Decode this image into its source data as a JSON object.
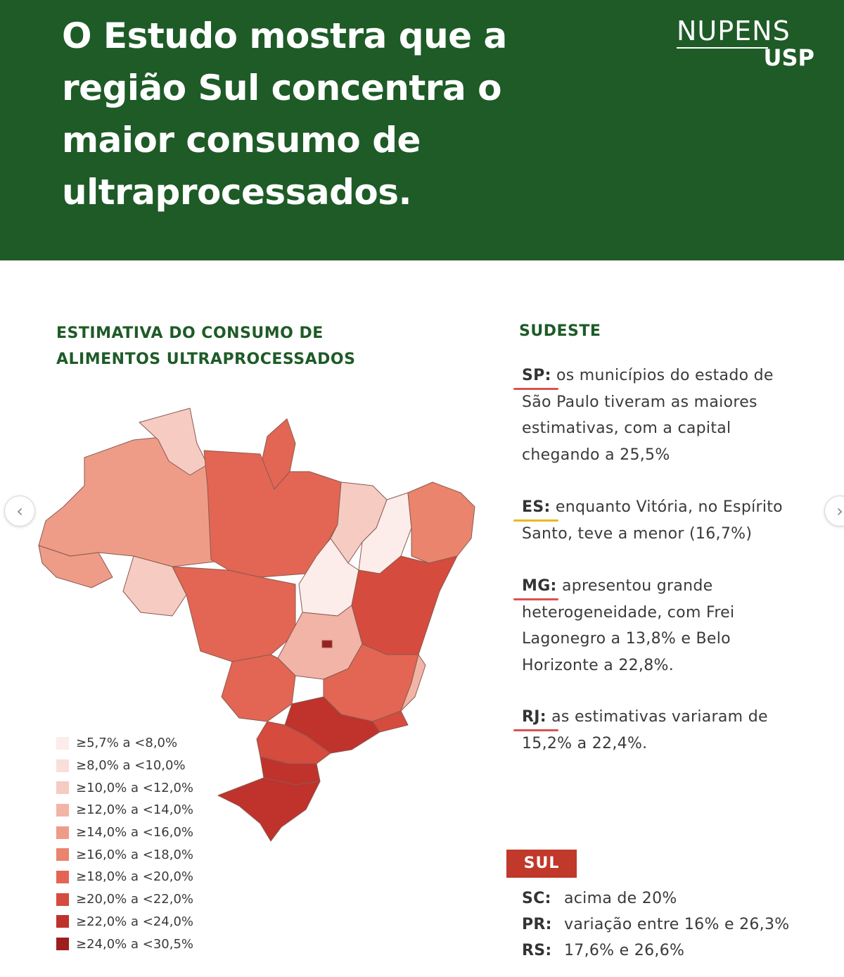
{
  "header": {
    "headline_lines": [
      "O Estudo mostra que a",
      "região Sul concentra o",
      "maior consumo de",
      "ultraprocessados."
    ],
    "logo_top": "NUPENS",
    "logo_bottom": "USP",
    "background_color": "#1e5b27"
  },
  "map": {
    "title_lines": [
      "ESTIMATIVA DO CONSUMO DE",
      "ALIMENTOS ULTRAPROCESSADOS"
    ],
    "legend": [
      {
        "label": "≥5,7% a <8,0%",
        "color": "#fcecea"
      },
      {
        "label": "≥8,0% a <10,0%",
        "color": "#f9ded9"
      },
      {
        "label": "≥10,0% a <12,0%",
        "color": "#f6cbc1"
      },
      {
        "label": "≥12,0% a <14,0%",
        "color": "#f2b4a6"
      },
      {
        "label": "≥14,0% a <16,0%",
        "color": "#ee9c88"
      },
      {
        "label": "≥16,0% a <18,0%",
        "color": "#ea846d"
      },
      {
        "label": "≥18,0% a <20,0%",
        "color": "#e26653"
      },
      {
        "label": "≥20,0% a <22,0%",
        "color": "#d54b3e"
      },
      {
        "label": "≥22,0% a <24,0%",
        "color": "#c0322c"
      },
      {
        "label": "≥24,0% a <30,5%",
        "color": "#9e1d1f"
      }
    ]
  },
  "sudeste": {
    "title": "SUDESTE",
    "states": [
      {
        "code": "SP:",
        "lines": [
          "os municípios do estado de",
          "São Paulo tiveram as maiores",
          "estimativas, com a capital",
          "chegando a 25,5%"
        ],
        "underline_color": "#d9534f"
      },
      {
        "code": "ES:",
        "lines": [
          "enquanto Vitória, no Espírito",
          "Santo, teve a menor (16,7%)"
        ],
        "underline_color": "#e8b923"
      },
      {
        "code": "MG:",
        "lines": [
          "apresentou grande",
          "heterogeneidade, com Frei",
          "Lagonegro a 13,8% e Belo",
          "Horizonte a 22,8%."
        ],
        "underline_color": "#d9534f"
      },
      {
        "code": "RJ:",
        "lines": [
          "as estimativas variaram de",
          "15,2% a 22,4%."
        ],
        "underline_color": "#d9534f"
      }
    ]
  },
  "sul": {
    "title": "SUL",
    "badge_color": "#c0392b",
    "rows": [
      {
        "code": "SC:",
        "text": "acima de 20%"
      },
      {
        "code": "PR:",
        "text": "variação entre 16% e 26,3%"
      },
      {
        "code": "RS:",
        "text": "17,6% e 26,6%"
      }
    ]
  },
  "nav": {
    "prev_icon": "chevron-left-icon",
    "next_icon": "chevron-right-icon"
  }
}
